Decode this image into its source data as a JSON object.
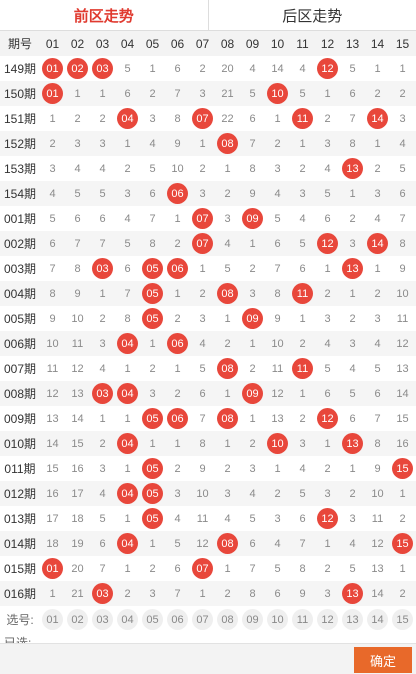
{
  "tabs": [
    "前区走势",
    "后区走势"
  ],
  "header_label": "期号",
  "columns": [
    "01",
    "02",
    "03",
    "04",
    "05",
    "06",
    "07",
    "08",
    "09",
    "10",
    "11",
    "12",
    "13",
    "14",
    "15"
  ],
  "rows": [
    {
      "period": "149期",
      "cells": [
        "01",
        "02",
        "03",
        "5",
        "1",
        "6",
        "2",
        "20",
        "4",
        "14",
        "4",
        "12",
        "5",
        "1",
        "1"
      ],
      "balls": [
        0,
        1,
        2,
        11
      ]
    },
    {
      "period": "150期",
      "cells": [
        "01",
        "1",
        "1",
        "6",
        "2",
        "7",
        "3",
        "21",
        "5",
        "10",
        "5",
        "1",
        "6",
        "2",
        "2"
      ],
      "balls": [
        0,
        9
      ]
    },
    {
      "period": "151期",
      "cells": [
        "1",
        "2",
        "2",
        "04",
        "3",
        "8",
        "07",
        "22",
        "6",
        "1",
        "11",
        "2",
        "7",
        "14",
        "3"
      ],
      "balls": [
        3,
        6,
        10,
        13
      ]
    },
    {
      "period": "152期",
      "cells": [
        "2",
        "3",
        "3",
        "1",
        "4",
        "9",
        "1",
        "08",
        "7",
        "2",
        "1",
        "3",
        "8",
        "1",
        "4"
      ],
      "balls": [
        7
      ]
    },
    {
      "period": "153期",
      "cells": [
        "3",
        "4",
        "4",
        "2",
        "5",
        "10",
        "2",
        "1",
        "8",
        "3",
        "2",
        "4",
        "13",
        "2",
        "5"
      ],
      "balls": [
        12
      ]
    },
    {
      "period": "154期",
      "cells": [
        "4",
        "5",
        "5",
        "3",
        "6",
        "06",
        "3",
        "2",
        "9",
        "4",
        "3",
        "5",
        "1",
        "3",
        "6"
      ],
      "balls": [
        5
      ]
    },
    {
      "period": "001期",
      "cells": [
        "5",
        "6",
        "6",
        "4",
        "7",
        "1",
        "07",
        "3",
        "09",
        "5",
        "4",
        "6",
        "2",
        "4",
        "7"
      ],
      "balls": [
        6,
        8
      ]
    },
    {
      "period": "002期",
      "cells": [
        "6",
        "7",
        "7",
        "5",
        "8",
        "2",
        "07",
        "4",
        "1",
        "6",
        "5",
        "12",
        "3",
        "14",
        "8"
      ],
      "balls": [
        6,
        11,
        13
      ]
    },
    {
      "period": "003期",
      "cells": [
        "7",
        "8",
        "03",
        "6",
        "05",
        "06",
        "1",
        "5",
        "2",
        "7",
        "6",
        "1",
        "13",
        "1",
        "9"
      ],
      "balls": [
        2,
        4,
        5,
        12
      ]
    },
    {
      "period": "004期",
      "cells": [
        "8",
        "9",
        "1",
        "7",
        "05",
        "1",
        "2",
        "08",
        "3",
        "8",
        "11",
        "2",
        "1",
        "2",
        "10"
      ],
      "balls": [
        4,
        7,
        10
      ]
    },
    {
      "period": "005期",
      "cells": [
        "9",
        "10",
        "2",
        "8",
        "05",
        "2",
        "3",
        "1",
        "09",
        "9",
        "1",
        "3",
        "2",
        "3",
        "11"
      ],
      "balls": [
        4,
        8
      ]
    },
    {
      "period": "006期",
      "cells": [
        "10",
        "11",
        "3",
        "04",
        "1",
        "06",
        "4",
        "2",
        "1",
        "10",
        "2",
        "4",
        "3",
        "4",
        "12"
      ],
      "balls": [
        3,
        5
      ]
    },
    {
      "period": "007期",
      "cells": [
        "11",
        "12",
        "4",
        "1",
        "2",
        "1",
        "5",
        "08",
        "2",
        "11",
        "11",
        "5",
        "4",
        "5",
        "13"
      ],
      "balls": [
        7,
        10
      ]
    },
    {
      "period": "008期",
      "cells": [
        "12",
        "13",
        "03",
        "04",
        "3",
        "2",
        "6",
        "1",
        "09",
        "12",
        "1",
        "6",
        "5",
        "6",
        "14"
      ],
      "balls": [
        2,
        3,
        8
      ]
    },
    {
      "period": "009期",
      "cells": [
        "13",
        "14",
        "1",
        "1",
        "05",
        "06",
        "7",
        "08",
        "1",
        "13",
        "2",
        "12",
        "6",
        "7",
        "15"
      ],
      "balls": [
        4,
        5,
        7,
        11
      ]
    },
    {
      "period": "010期",
      "cells": [
        "14",
        "15",
        "2",
        "04",
        "1",
        "1",
        "8",
        "1",
        "2",
        "10",
        "3",
        "1",
        "13",
        "8",
        "16"
      ],
      "balls": [
        3,
        9,
        12
      ]
    },
    {
      "period": "011期",
      "cells": [
        "15",
        "16",
        "3",
        "1",
        "05",
        "2",
        "9",
        "2",
        "3",
        "1",
        "4",
        "2",
        "1",
        "9",
        "15"
      ],
      "balls": [
        4,
        14
      ]
    },
    {
      "period": "012期",
      "cells": [
        "16",
        "17",
        "4",
        "04",
        "05",
        "3",
        "10",
        "3",
        "4",
        "2",
        "5",
        "3",
        "2",
        "10",
        "1"
      ],
      "balls": [
        3,
        4
      ]
    },
    {
      "period": "013期",
      "cells": [
        "17",
        "18",
        "5",
        "1",
        "05",
        "4",
        "11",
        "4",
        "5",
        "3",
        "6",
        "12",
        "3",
        "11",
        "2"
      ],
      "balls": [
        4,
        11
      ]
    },
    {
      "period": "014期",
      "cells": [
        "18",
        "19",
        "6",
        "04",
        "1",
        "5",
        "12",
        "08",
        "6",
        "4",
        "7",
        "1",
        "4",
        "12",
        "15"
      ],
      "balls": [
        3,
        7,
        14
      ]
    },
    {
      "period": "015期",
      "cells": [
        "01",
        "20",
        "7",
        "1",
        "2",
        "6",
        "07",
        "1",
        "7",
        "5",
        "8",
        "2",
        "5",
        "13",
        "1"
      ],
      "balls": [
        0,
        6
      ]
    },
    {
      "period": "016期",
      "cells": [
        "1",
        "21",
        "03",
        "2",
        "3",
        "7",
        "1",
        "2",
        "8",
        "6",
        "9",
        "3",
        "13",
        "14",
        "2"
      ],
      "balls": [
        2,
        12
      ]
    }
  ],
  "select_label": "选号:",
  "chosen_label": "已选:",
  "confirm_label": "确定"
}
